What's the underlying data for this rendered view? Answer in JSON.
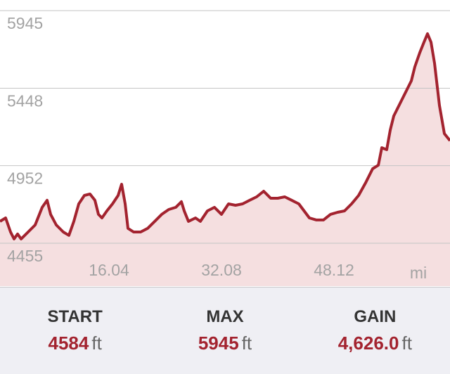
{
  "chart_data": {
    "type": "area",
    "x_label": "mi",
    "x": [
      0.5,
      1.3,
      2.0,
      2.5,
      3.01,
      3.51,
      4.51,
      5.51,
      6.52,
      7.22,
      7.72,
      8.52,
      9.52,
      10.32,
      11.03,
      11.73,
      12.53,
      13.33,
      14.03,
      14.53,
      15.04,
      15.74,
      16.54,
      17.34,
      17.84,
      18.34,
      18.75,
      19.55,
      20.55,
      21.55,
      22.56,
      23.56,
      24.56,
      25.56,
      26.36,
      26.77,
      27.37,
      28.37,
      29.07,
      30.07,
      31.08,
      32.08,
      33.08,
      34.08,
      35.09,
      36.09,
      37.09,
      38.09,
      39.1,
      40.1,
      41.1,
      42.1,
      43.11,
      44.61,
      45.61,
      46.62,
      47.62,
      48.62,
      49.62,
      50.63,
      51.63,
      52.63,
      53.63,
      54.44,
      54.94,
      55.64,
      56.14,
      56.64,
      57.64,
      58.65,
      59.15,
      59.65,
      60.35,
      60.95,
      61.45,
      61.95,
      62.45,
      63.16,
      63.86,
      64.66
    ],
    "values": [
      4595,
      4617,
      4527,
      4482,
      4514,
      4482,
      4527,
      4572,
      4685,
      4730,
      4640,
      4572,
      4527,
      4505,
      4595,
      4707,
      4761,
      4770,
      4730,
      4640,
      4617,
      4662,
      4707,
      4761,
      4833,
      4707,
      4550,
      4527,
      4527,
      4550,
      4595,
      4640,
      4671,
      4685,
      4721,
      4662,
      4595,
      4617,
      4595,
      4662,
      4685,
      4640,
      4707,
      4698,
      4707,
      4730,
      4752,
      4788,
      4743,
      4743,
      4752,
      4730,
      4707,
      4617,
      4604,
      4604,
      4640,
      4653,
      4662,
      4707,
      4761,
      4842,
      4932,
      4955,
      5067,
      5054,
      5180,
      5270,
      5360,
      5450,
      5495,
      5585,
      5675,
      5743,
      5797,
      5743,
      5608,
      5337,
      5157,
      5112
    ],
    "color": "#a3232f",
    "fill_color": "#f5dfe0",
    "xlim": [
      0.5,
      64.66
    ],
    "xticks": [
      16.04,
      32.08,
      48.12
    ],
    "ylim": [
      4180,
      6013
    ],
    "yticks": [
      4455,
      4952,
      5448,
      5945
    ],
    "grid": true
  },
  "stats": [
    {
      "label": "START",
      "value": "4584",
      "unit": "ft"
    },
    {
      "label": "MAX",
      "value": "5945",
      "unit": "ft"
    },
    {
      "label": "GAIN",
      "value": "4,626.0",
      "unit": "ft"
    }
  ]
}
